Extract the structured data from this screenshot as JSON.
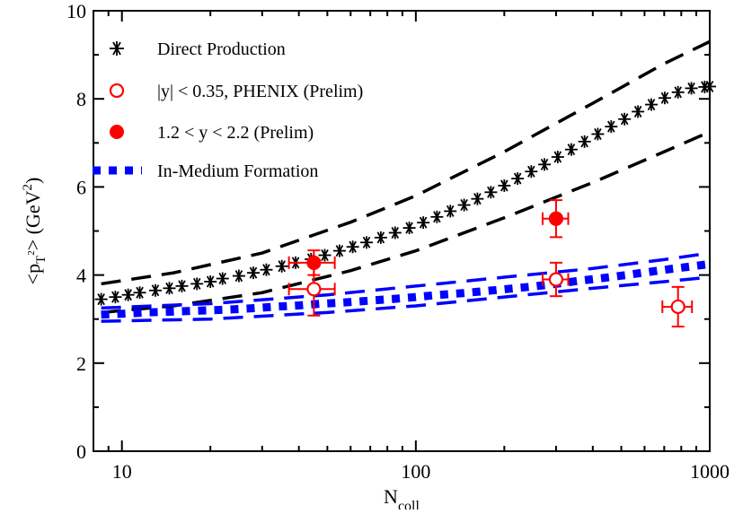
{
  "chart_data": {
    "type": "scatter",
    "x_scale": "log",
    "xlim": [
      8,
      1000
    ],
    "ylim": [
      0,
      10
    ],
    "x_ticks": [
      "10",
      "100",
      "1000"
    ],
    "y_ticks": [
      "0",
      "2",
      "4",
      "6",
      "8",
      "10"
    ],
    "xlabel": {
      "main": "N",
      "sub": "coll"
    },
    "ylabel": {
      "open": "<p",
      "sub": "T",
      "sup_small": "2",
      "close": "> (GeV",
      "sup": "2",
      "end": ")"
    },
    "legend_position": "top-left",
    "legend": [
      {
        "label": "Direct Production",
        "marker": "asterisk",
        "color": "#000000"
      },
      {
        "label": "|y| < 0.35, PHENIX (Prelim)",
        "marker": "open-circle",
        "color": "#ff0000"
      },
      {
        "label": "1.2 < y < 2.2 (Prelim)",
        "marker": "filled-circle",
        "color": "#ff0000"
      },
      {
        "label": "In-Medium Formation",
        "marker": "square",
        "color": "#0000ff"
      }
    ],
    "series": [
      {
        "name": "Direct Production",
        "style": "asterisk",
        "color": "#000000",
        "x": [
          8.5,
          9.5,
          10.5,
          11.5,
          13,
          14.5,
          16,
          18,
          20,
          22,
          25,
          28,
          31,
          35,
          39,
          44,
          49,
          55,
          61,
          68,
          76,
          85,
          95,
          106,
          118,
          131,
          146,
          162,
          180,
          200,
          222,
          247,
          274,
          304,
          338,
          375,
          416,
          462,
          513,
          570,
          633,
          703,
          780,
          866,
          961,
          1000
        ],
        "y": [
          3.45,
          3.5,
          3.55,
          3.6,
          3.65,
          3.7,
          3.75,
          3.8,
          3.85,
          3.92,
          3.98,
          4.05,
          4.12,
          4.2,
          4.28,
          4.36,
          4.45,
          4.55,
          4.64,
          4.74,
          4.85,
          4.96,
          5.07,
          5.19,
          5.32,
          5.45,
          5.59,
          5.73,
          5.88,
          6.03,
          6.19,
          6.35,
          6.51,
          6.68,
          6.85,
          7.03,
          7.2,
          7.37,
          7.54,
          7.71,
          7.87,
          8.02,
          8.15,
          8.24,
          8.27,
          8.28
        ]
      },
      {
        "name": "Direct Production upper band",
        "style": "dashed",
        "color": "#000000",
        "x": [
          8.5,
          15,
          30,
          60,
          100,
          200,
          400,
          700,
          1000
        ],
        "y": [
          3.8,
          4.05,
          4.5,
          5.2,
          5.8,
          6.8,
          7.9,
          8.8,
          9.3
        ]
      },
      {
        "name": "Direct Production lower band",
        "style": "dashed",
        "color": "#000000",
        "x": [
          8.5,
          15,
          30,
          60,
          100,
          200,
          400,
          700,
          1000
        ],
        "y": [
          3.15,
          3.3,
          3.6,
          4.1,
          4.55,
          5.3,
          6.1,
          6.8,
          7.25
        ]
      },
      {
        "name": "In-Medium Formation",
        "style": "squares",
        "color": "#0000ff",
        "x": [
          8.5,
          10,
          12,
          15,
          18,
          22,
          27,
          33,
          40,
          48,
          58,
          70,
          85,
          100,
          120,
          145,
          175,
          210,
          250,
          300,
          360,
          430,
          520,
          620,
          740,
          880,
          1000
        ],
        "y": [
          3.1,
          3.12,
          3.15,
          3.17,
          3.19,
          3.21,
          3.24,
          3.28,
          3.31,
          3.35,
          3.38,
          3.42,
          3.46,
          3.5,
          3.55,
          3.59,
          3.64,
          3.69,
          3.74,
          3.8,
          3.87,
          3.93,
          4.0,
          4.07,
          4.14,
          4.2,
          4.25
        ]
      },
      {
        "name": "In-Medium Formation upper band",
        "style": "dashed",
        "color": "#0000ff",
        "x": [
          8.5,
          20,
          50,
          100,
          200,
          400,
          700,
          1000
        ],
        "y": [
          3.25,
          3.35,
          3.55,
          3.75,
          3.95,
          4.15,
          4.35,
          4.5
        ]
      },
      {
        "name": "In-Medium Formation lower band",
        "style": "dashed",
        "color": "#0000ff",
        "x": [
          8.5,
          20,
          50,
          100,
          200,
          400,
          700,
          1000
        ],
        "y": [
          2.95,
          3.0,
          3.15,
          3.3,
          3.5,
          3.7,
          3.85,
          3.95
        ]
      },
      {
        "name": "|y| < 0.35, PHENIX (Prelim)",
        "style": "open-circle",
        "color": "#ff0000",
        "x": [
          45,
          300,
          780
        ],
        "y": [
          3.68,
          3.9,
          3.28
        ],
        "yerr": [
          0.6,
          0.38,
          0.45
        ],
        "xerr_low": [
          8,
          30,
          90
        ],
        "xerr_high": [
          8,
          30,
          90
        ]
      },
      {
        "name": "1.2 < y < 2.2 (Prelim)",
        "style": "filled-circle",
        "color": "#ff0000",
        "x": [
          45,
          300
        ],
        "y": [
          4.28,
          5.28
        ],
        "yerr": [
          0.28,
          0.42
        ],
        "xerr_low": [
          8,
          30
        ],
        "xerr_high": [
          8,
          30
        ]
      }
    ]
  }
}
